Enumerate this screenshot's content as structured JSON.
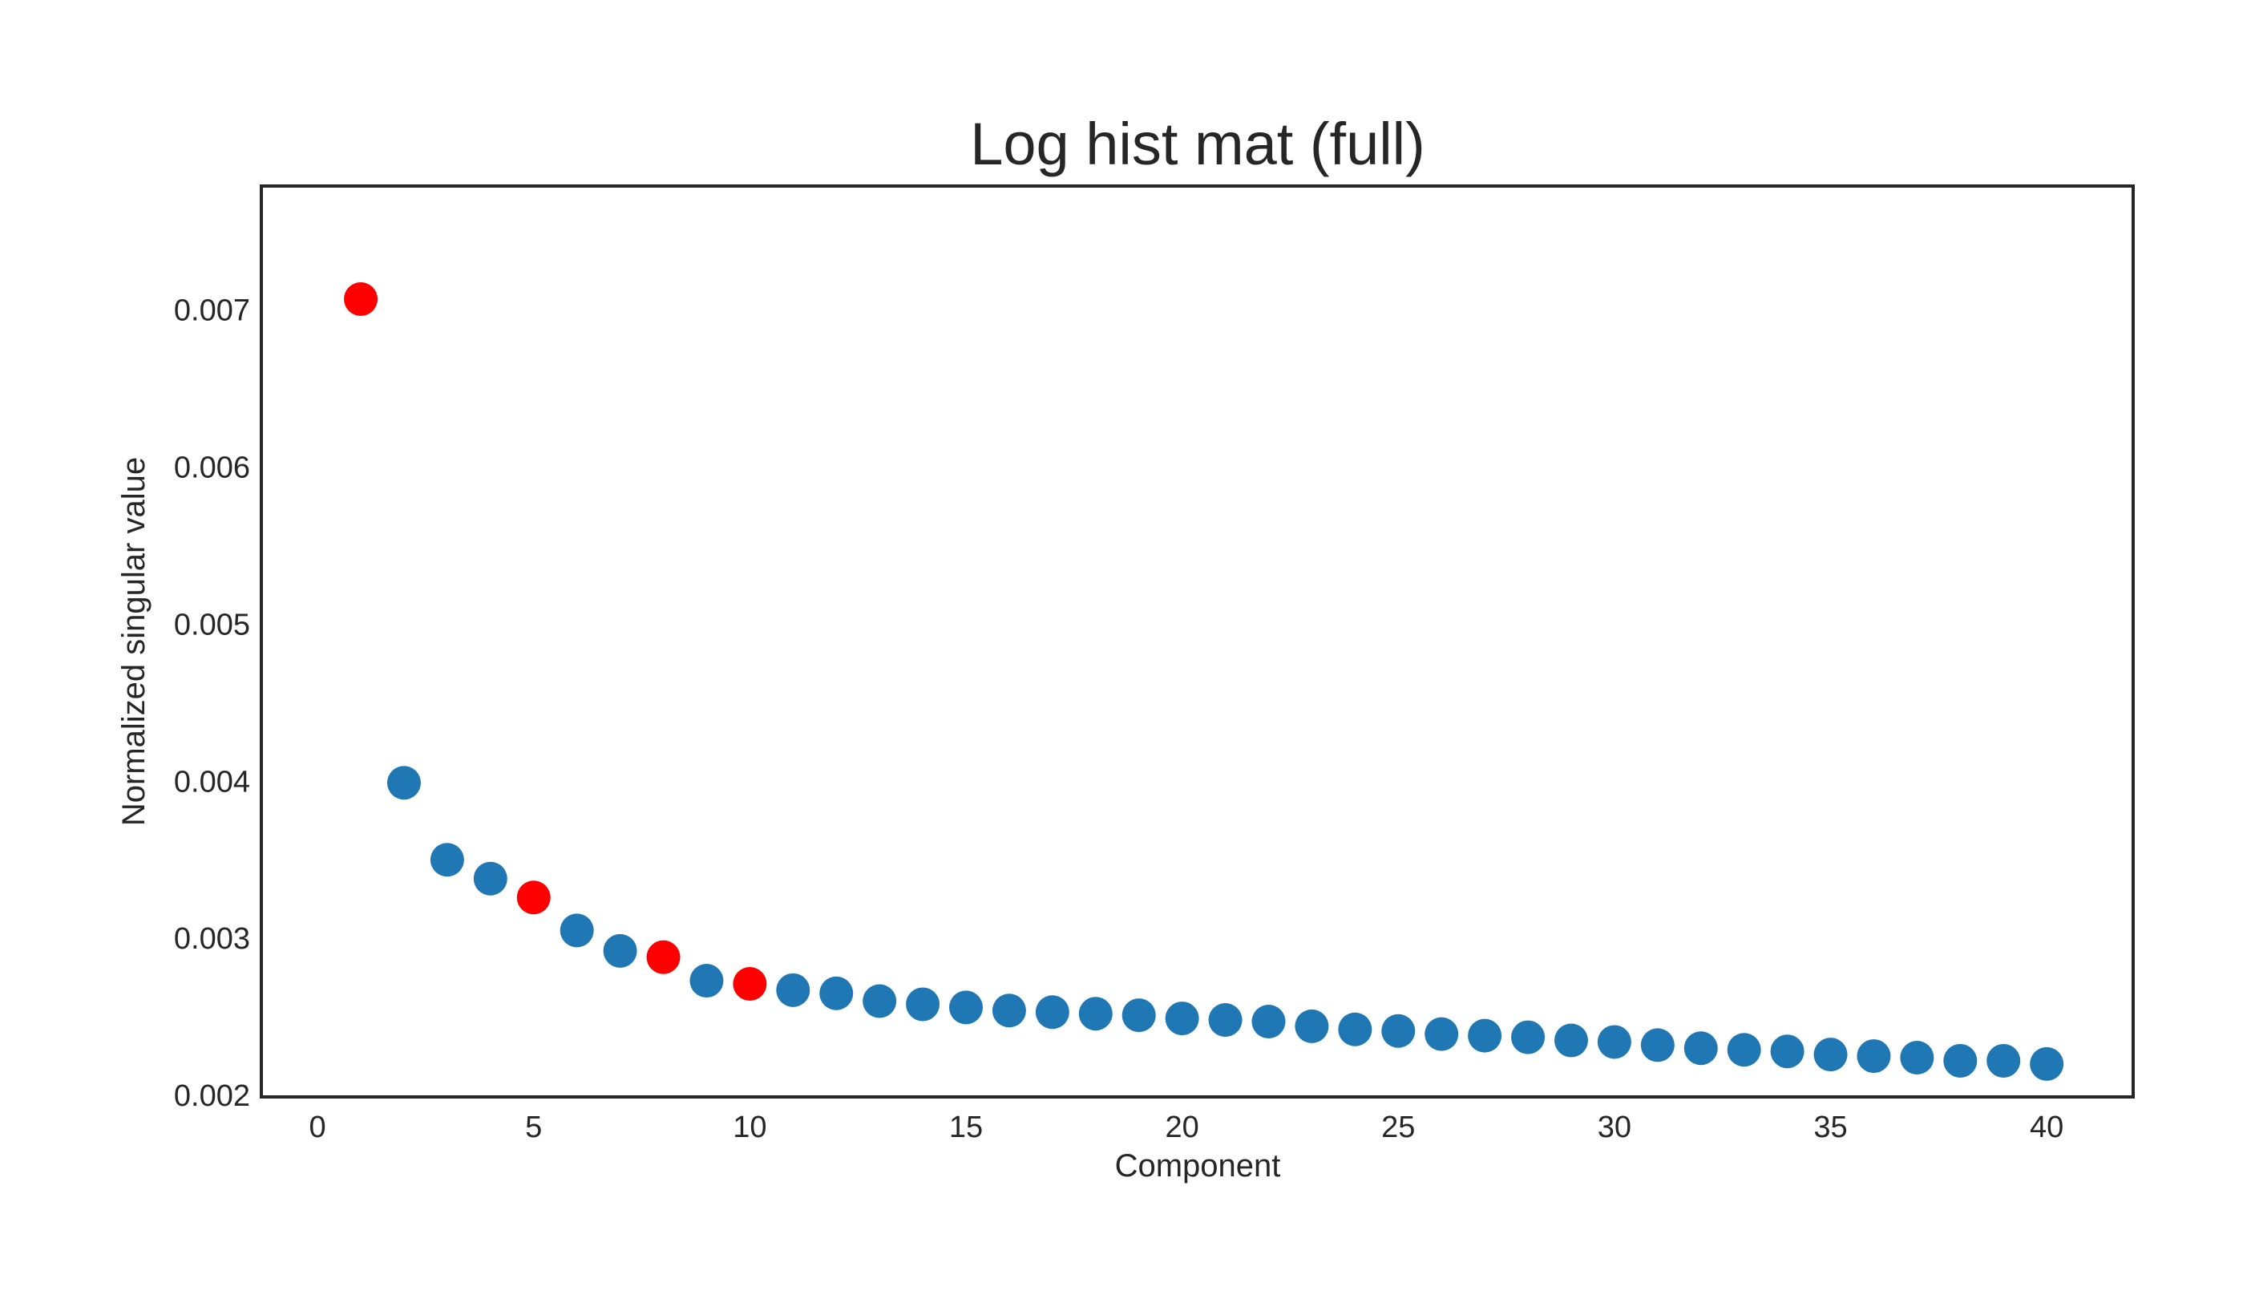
{
  "chart_data": {
    "type": "scatter",
    "title": "Log hist mat (full)",
    "xlabel": "Component",
    "ylabel": "Normalized singular value",
    "xlim": [
      -1.3,
      42
    ],
    "ylim": [
      0.00199,
      0.00779
    ],
    "x_ticks": [
      0,
      5,
      10,
      15,
      20,
      25,
      30,
      35,
      40
    ],
    "y_ticks": [
      0.002,
      0.003,
      0.004,
      0.005,
      0.006,
      0.007
    ],
    "x_tick_labels": [
      "0",
      "5",
      "10",
      "15",
      "20",
      "25",
      "30",
      "35",
      "40"
    ],
    "y_tick_labels": [
      "0.002",
      "0.003",
      "0.004",
      "0.005",
      "0.006",
      "0.007"
    ],
    "grid": false,
    "legend": "none",
    "colors": {
      "default": "#1f77b4",
      "highlight": "#ff0000",
      "axes": "#262626"
    },
    "series": [
      {
        "x": [
          1,
          2,
          3,
          4,
          5,
          6,
          7,
          8,
          9,
          10,
          11,
          12,
          13,
          14,
          15,
          16,
          17,
          18,
          19,
          20,
          21,
          22,
          23,
          24,
          25,
          26,
          27,
          28,
          29,
          30,
          31,
          32,
          33,
          34,
          35,
          36,
          37,
          38,
          39,
          40
        ],
        "values": [
          0.00707,
          0.00399,
          0.0035,
          0.00338,
          0.00326,
          0.00305,
          0.00292,
          0.00288,
          0.00273,
          0.00271,
          0.00267,
          0.00265,
          0.0026,
          0.00258,
          0.00256,
          0.00254,
          0.00253,
          0.00252,
          0.00251,
          0.00249,
          0.00248,
          0.00247,
          0.00244,
          0.00242,
          0.00241,
          0.00239,
          0.00238,
          0.00237,
          0.00235,
          0.00234,
          0.00232,
          0.0023,
          0.00229,
          0.00228,
          0.00226,
          0.00225,
          0.00224,
          0.00222,
          0.00222,
          0.0022
        ],
        "highlighted_x": [
          1,
          5,
          8,
          10
        ]
      }
    ]
  }
}
